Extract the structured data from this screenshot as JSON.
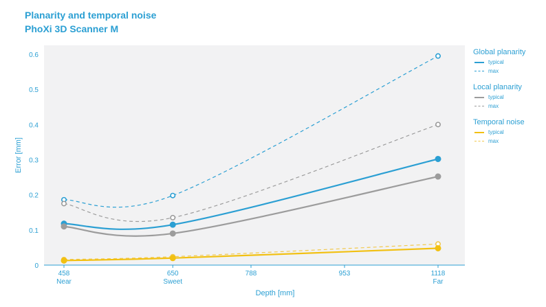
{
  "chart_data": {
    "type": "line",
    "title": "Planarity and temporal noise",
    "subtitle": "PhoXi 3D Scanner M",
    "xlabel": "Depth [mm]",
    "ylabel": "Error [mm]",
    "x_ticks": [
      {
        "value": 458,
        "label": "458",
        "sublabel": "Near"
      },
      {
        "value": 650,
        "label": "650",
        "sublabel": "Sweet"
      },
      {
        "value": 788,
        "label": "788",
        "sublabel": ""
      },
      {
        "value": 953,
        "label": "953",
        "sublabel": ""
      },
      {
        "value": 1118,
        "label": "1118",
        "sublabel": "Far"
      }
    ],
    "y_ticks": [
      "0",
      "0.1",
      "0.2",
      "0.3",
      "0.4",
      "0.5",
      "0.6"
    ],
    "xlim": [
      458,
      1118
    ],
    "ylim": [
      0,
      0.6
    ],
    "grid": false,
    "legend_position": "right",
    "series": [
      {
        "group": "Global planarity",
        "name": "max",
        "style": "dashed",
        "marker": "hollow",
        "color": "#2b9fd3",
        "points": [
          [
            458,
            0.186
          ],
          [
            650,
            0.198
          ],
          [
            1118,
            0.595
          ]
        ]
      },
      {
        "group": "Local planarity",
        "name": "max",
        "style": "dashed",
        "marker": "hollow",
        "color": "#9c9c9c",
        "points": [
          [
            458,
            0.175
          ],
          [
            650,
            0.135
          ],
          [
            1118,
            0.4
          ]
        ]
      },
      {
        "group": "Global planarity",
        "name": "typical",
        "style": "solid",
        "marker": "filled",
        "color": "#2b9fd3",
        "points": [
          [
            458,
            0.118
          ],
          [
            650,
            0.115
          ],
          [
            1118,
            0.302
          ]
        ]
      },
      {
        "group": "Local planarity",
        "name": "typical",
        "style": "solid",
        "marker": "filled",
        "color": "#9c9c9c",
        "points": [
          [
            458,
            0.11
          ],
          [
            650,
            0.09
          ],
          [
            1118,
            0.252
          ]
        ]
      },
      {
        "group": "Temporal noise",
        "name": "max",
        "style": "dashed",
        "marker": "hollow",
        "color": "#f2c94c",
        "points": [
          [
            458,
            0.016
          ],
          [
            650,
            0.024
          ],
          [
            1118,
            0.06
          ]
        ]
      },
      {
        "group": "Temporal noise",
        "name": "typical",
        "style": "solid",
        "marker": "filled",
        "color": "#f2c011",
        "points": [
          [
            458,
            0.013
          ],
          [
            650,
            0.02
          ],
          [
            1118,
            0.048
          ]
        ]
      }
    ]
  },
  "legend": [
    {
      "title": "Global planarity",
      "items": [
        {
          "label": "typical",
          "color": "#2b9fd3",
          "style": "solid"
        },
        {
          "label": "max",
          "color": "#2b9fd3",
          "style": "dashed"
        }
      ]
    },
    {
      "title": "Local planarity",
      "items": [
        {
          "label": "typical",
          "color": "#9c9c9c",
          "style": "solid"
        },
        {
          "label": "max",
          "color": "#9c9c9c",
          "style": "dashed"
        }
      ]
    },
    {
      "title": "Temporal noise",
      "items": [
        {
          "label": "typical",
          "color": "#f2c011",
          "style": "solid"
        },
        {
          "label": "max",
          "color": "#f2c94c",
          "style": "dashed"
        }
      ]
    }
  ]
}
